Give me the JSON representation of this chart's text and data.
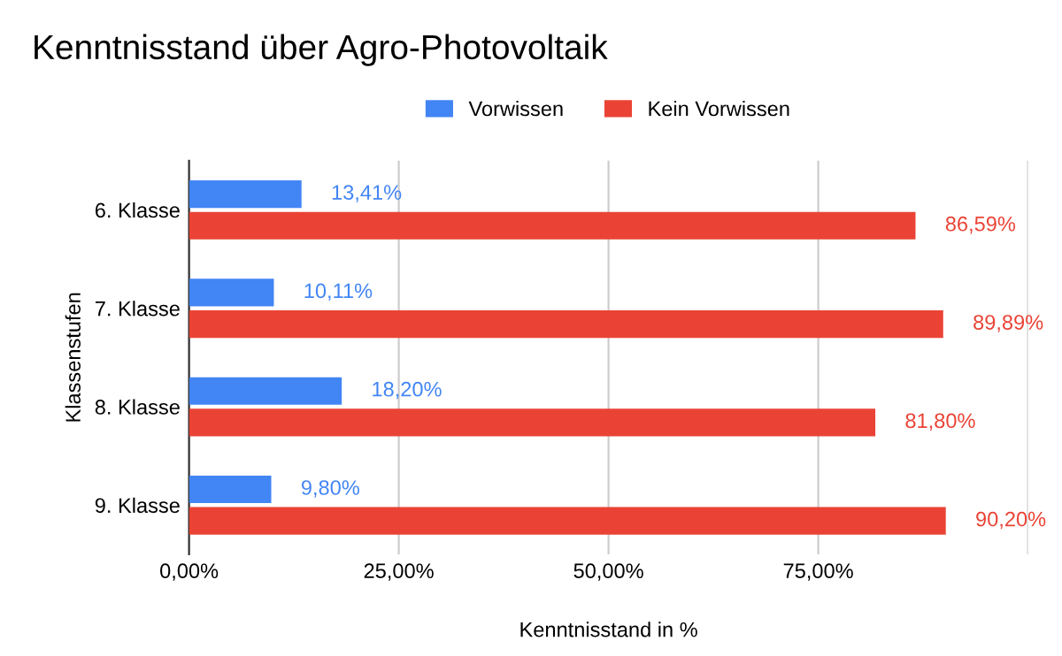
{
  "chart_data": {
    "type": "bar",
    "orientation": "horizontal",
    "title": "Kenntnisstand über Agro-Photovoltaik",
    "xlabel": "Kenntnisstand in %",
    "ylabel": "Klassenstufen",
    "categories": [
      "6. Klasse",
      "7. Klasse",
      "8. Klasse",
      "9. Klasse"
    ],
    "series": [
      {
        "name": "Vorwissen",
        "color": "#4285f4",
        "values": [
          13.41,
          10.11,
          18.2,
          9.8
        ],
        "value_labels": [
          "13,41%",
          "10,11%",
          "18,20%",
          "9,80%"
        ]
      },
      {
        "name": "Kein Vorwissen",
        "color": "#ea4335",
        "values": [
          86.59,
          89.89,
          81.8,
          90.2
        ],
        "value_labels": [
          "86,59%",
          "89,89%",
          "81,80%",
          "90,20%"
        ]
      }
    ],
    "xlim": [
      0,
      100
    ],
    "xticks": [
      {
        "value": 0,
        "label": "0,00%"
      },
      {
        "value": 25,
        "label": "25,00%"
      },
      {
        "value": 50,
        "label": "50,00%"
      },
      {
        "value": 75,
        "label": "75,00%"
      },
      {
        "value": 100,
        "label": null
      }
    ],
    "grid": "x",
    "legend": "top"
  }
}
